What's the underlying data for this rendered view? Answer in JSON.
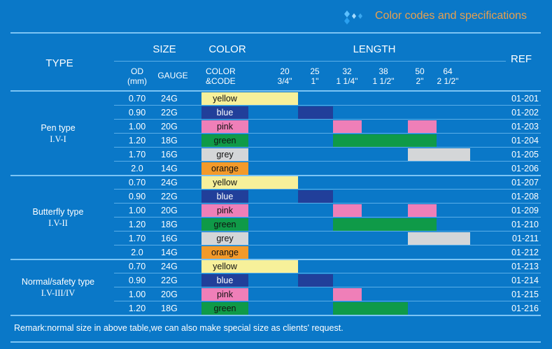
{
  "title": "Color codes and specifications",
  "header": {
    "type": "TYPE",
    "size": "SIZE",
    "color": "COLOR",
    "length": "LENGTH",
    "ref": "REF",
    "od": [
      "OD",
      "(mm)"
    ],
    "gauge": "GAUGE",
    "color_code": [
      "COLOR",
      "&CODE"
    ],
    "length_columns": [
      {
        "mm": "20",
        "inch": "3/4\""
      },
      {
        "mm": "25",
        "inch": "1\""
      },
      {
        "mm": "32",
        "inch": "1 1/4\""
      },
      {
        "mm": "38",
        "inch": "1 1/2\""
      },
      {
        "mm": "50",
        "inch": "2\""
      },
      {
        "mm": "64",
        "inch": "2 1/2\""
      }
    ]
  },
  "colors": {
    "yellow": "#f7f09a",
    "blue": "#213f9a",
    "pink": "#ef7fb8",
    "green": "#0f9a48",
    "grey": "#d4d6d8",
    "orange": "#f39a2a",
    "background": "#0a78c8",
    "title": "#e8a04e"
  },
  "groups": [
    {
      "type": "Pen type",
      "code": "I.V-I",
      "rows": [
        {
          "od": "0.70",
          "gauge": "24G",
          "color": "yellow",
          "lengths": [
            "20"
          ],
          "ref": "01-201"
        },
        {
          "od": "0.90",
          "gauge": "22G",
          "color": "blue",
          "lengths": [
            "25"
          ],
          "ref": "01-202"
        },
        {
          "od": "1.00",
          "gauge": "20G",
          "color": "pink",
          "lengths": [
            "32",
            "50"
          ],
          "ref": "01-203"
        },
        {
          "od": "1.20",
          "gauge": "18G",
          "color": "green",
          "lengths": [
            "32",
            "38",
            "50"
          ],
          "ref": "01-204"
        },
        {
          "od": "1.70",
          "gauge": "16G",
          "color": "grey",
          "lengths": [
            "50",
            "64"
          ],
          "ref": "01-205"
        },
        {
          "od": "2.0",
          "gauge": "14G",
          "color": "orange",
          "lengths": [],
          "ref": "01-206"
        }
      ]
    },
    {
      "type": "Butterfly type",
      "code": "I.V-II",
      "rows": [
        {
          "od": "0.70",
          "gauge": "24G",
          "color": "yellow",
          "lengths": [
            "20"
          ],
          "ref": "01-207"
        },
        {
          "od": "0.90",
          "gauge": "22G",
          "color": "blue",
          "lengths": [
            "25"
          ],
          "ref": "01-208"
        },
        {
          "od": "1.00",
          "gauge": "20G",
          "color": "pink",
          "lengths": [
            "32",
            "50"
          ],
          "ref": "01-209"
        },
        {
          "od": "1.20",
          "gauge": "18G",
          "color": "green",
          "lengths": [
            "32",
            "38",
            "50"
          ],
          "ref": "01-210"
        },
        {
          "od": "1.70",
          "gauge": "16G",
          "color": "grey",
          "lengths": [
            "50",
            "64"
          ],
          "ref": "01-211"
        },
        {
          "od": "2.0",
          "gauge": "14G",
          "color": "orange",
          "lengths": [],
          "ref": "01-212"
        }
      ]
    },
    {
      "type": "Normal/safety type",
      "code": "I.V-III/IV",
      "rows": [
        {
          "od": "0.70",
          "gauge": "24G",
          "color": "yellow",
          "lengths": [
            "20"
          ],
          "ref": "01-213"
        },
        {
          "od": "0.90",
          "gauge": "22G",
          "color": "blue",
          "lengths": [
            "25"
          ],
          "ref": "01-214"
        },
        {
          "od": "1.00",
          "gauge": "20G",
          "color": "pink",
          "lengths": [
            "32"
          ],
          "ref": "01-215"
        },
        {
          "od": "1.20",
          "gauge": "18G",
          "color": "green",
          "lengths": [
            "32",
            "38"
          ],
          "ref": "01-216"
        }
      ]
    }
  ],
  "remark": "Remark:normal size in above table,we can also make special size as clients' request."
}
